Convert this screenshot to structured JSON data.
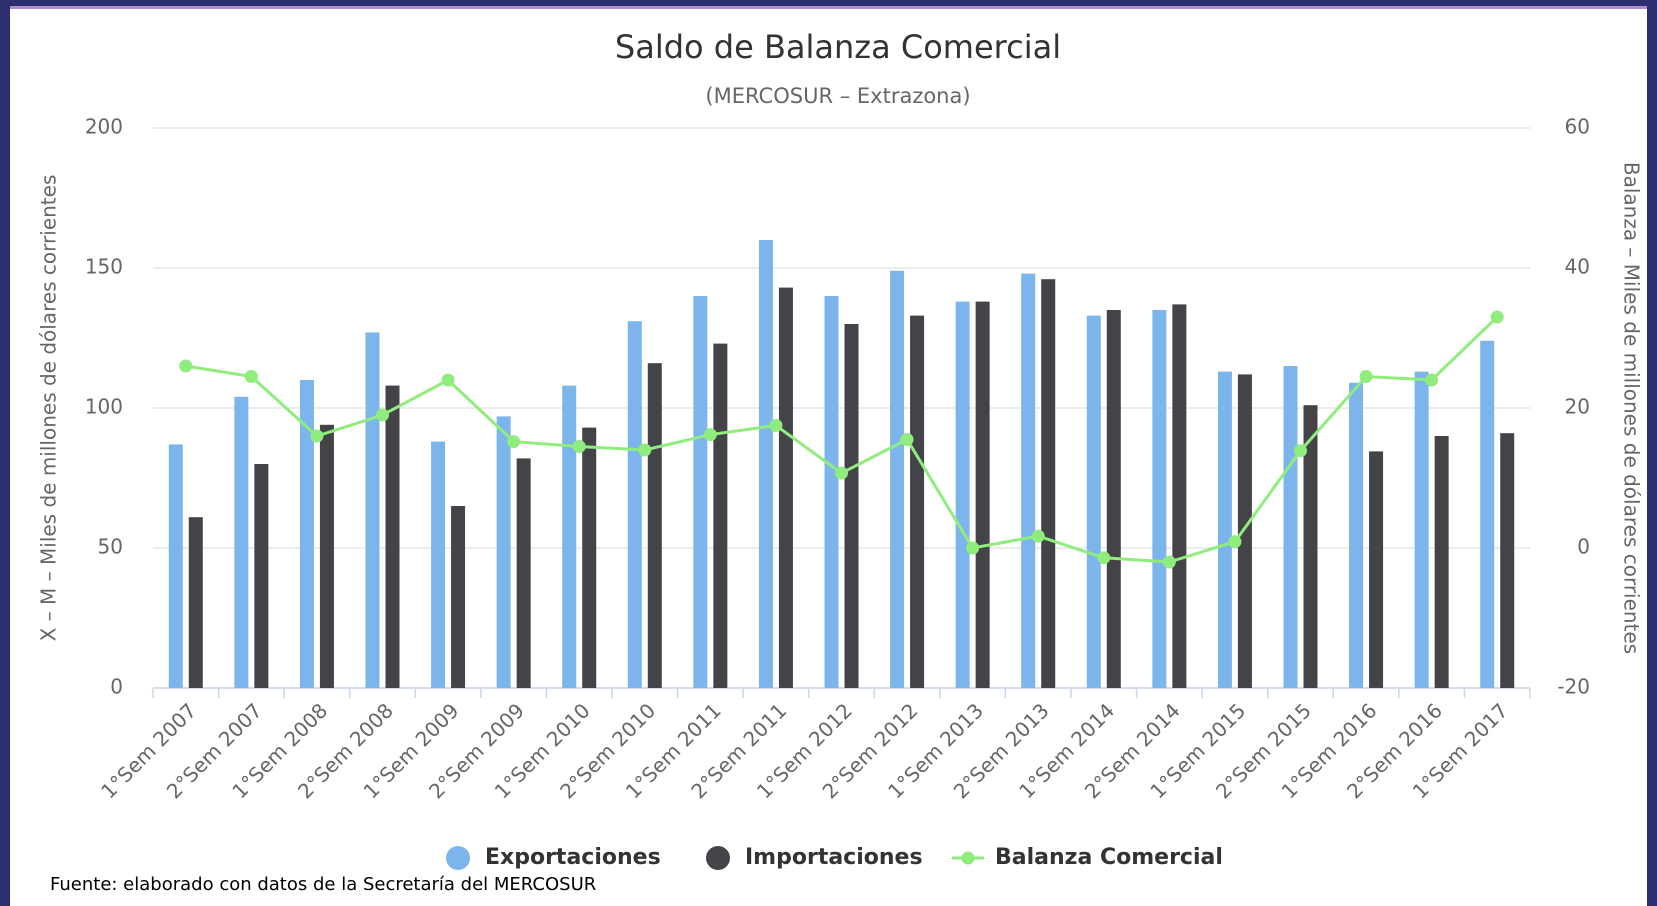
{
  "chart_data": {
    "type": "bar-line",
    "title": "Saldo de Balanza Comercial",
    "subtitle": "(MERCOSUR – Extrazona)",
    "y_label": "X – M – Miles de millones de dólares corrientes",
    "y2_label": "Balanza – Miles de millones de dólares corrientes",
    "source": "Fuente: elaborado con datos de la Secretaría del MERCOSUR",
    "categories": [
      "1°Sem 2007",
      "2°Sem 2007",
      "1°Sem 2008",
      "2°Sem 2008",
      "1°Sem 2009",
      "2°Sem 2009",
      "1°Sem 2010",
      "2°Sem 2010",
      "1°Sem 2011",
      "2°Sem 2011",
      "1°Sem 2012",
      "2°Sem 2012",
      "1°Sem 2013",
      "2°Sem 2013",
      "1°Sem 2014",
      "2°Sem 2014",
      "1°Sem 2015",
      "2°Sem 2015",
      "1°Sem 2016",
      "2°Sem 2016",
      "1°Sem 2017"
    ],
    "series": [
      {
        "name": "Exportaciones",
        "type": "bar",
        "color": "#7cb5ec",
        "values": [
          87,
          104,
          110,
          127,
          88,
          97,
          108,
          131,
          140,
          160,
          140,
          149,
          138,
          148,
          133,
          135,
          113,
          115,
          109,
          113,
          124
        ]
      },
      {
        "name": "Importaciones",
        "type": "bar",
        "color": "#434348",
        "values": [
          61,
          80,
          94,
          108,
          65,
          82,
          93,
          116,
          123,
          143,
          130,
          133,
          138,
          146,
          135,
          137,
          112,
          101,
          84.5,
          90,
          91
        ]
      },
      {
        "name": "Balanza Comercial",
        "type": "line",
        "axis": "y2",
        "color": "#90ed7d",
        "values": [
          26,
          24.5,
          16,
          19,
          24,
          15.2,
          14.5,
          14,
          16.2,
          17.5,
          10.7,
          15.5,
          0,
          1.7,
          -1.4,
          -2,
          0.9,
          13.9,
          24.5,
          24,
          33
        ]
      }
    ],
    "ylim": [
      0,
      200
    ],
    "yticks": [
      0,
      50,
      100,
      150,
      200
    ],
    "y2lim": [
      -20,
      60
    ],
    "y2ticks": [
      -20,
      0,
      20,
      40,
      60
    ],
    "grid": true,
    "legend": "bottom"
  }
}
